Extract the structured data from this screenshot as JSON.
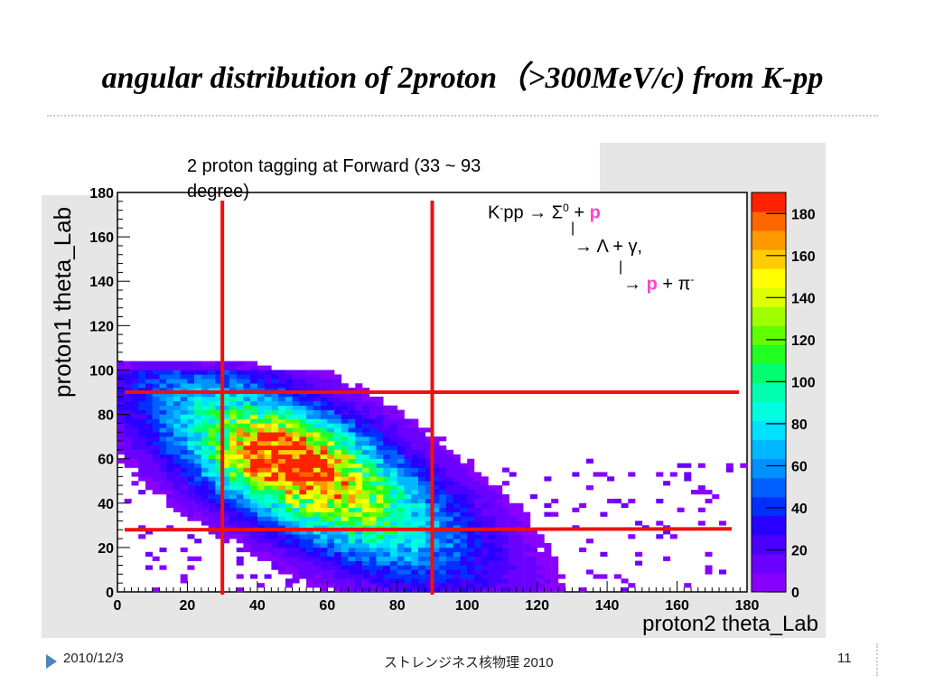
{
  "slide": {
    "title": "angular distribution of 2proton（>300MeV/c) from K-pp",
    "footer_date": "2010/12/3",
    "footer_center": "ストレンジネス核物理 2010",
    "page_number": "11"
  },
  "annotations": {
    "tagging_line1": "2 proton tagging at Forward (33 ~ 93",
    "tagging_line2": "degree)",
    "reaction_line1_k": "K",
    "reaction_line1_minus": "-",
    "reaction_line1_rest": "pp → Σ",
    "reaction_line1_zero": "0",
    "reaction_line1_plus": " + ",
    "reaction_line1_p": "p",
    "reaction_line2_bar": "|",
    "reaction_line2": "→ Λ + γ,",
    "reaction_line3_bar": "|",
    "reaction_line3_arrow": "→ ",
    "reaction_line3_p": "p",
    "reaction_line3_rest": " + π",
    "reaction_line3_minus": "-"
  },
  "chart_data": {
    "type": "heatmap",
    "xlabel": "proton2 theta_Lab",
    "ylabel": "proton1 theta_Lab",
    "xlim": [
      0,
      180
    ],
    "ylim": [
      0,
      180
    ],
    "x_ticks": [
      0,
      20,
      40,
      60,
      80,
      100,
      120,
      140,
      160,
      180
    ],
    "y_ticks": [
      0,
      20,
      40,
      60,
      80,
      100,
      120,
      140,
      160,
      180
    ],
    "z_ticks": [
      0,
      20,
      40,
      60,
      80,
      100,
      120,
      140,
      160,
      180
    ],
    "zlim": [
      0,
      190
    ],
    "colors": {
      "cut_lines": "#ee1111",
      "palette_low": "#7a00ff",
      "palette_high": "#ff0000"
    },
    "palette": [
      "#8800ff",
      "#6a00ff",
      "#4a00ff",
      "#2800ff",
      "#0030ff",
      "#0060ff",
      "#0090ff",
      "#00b8ff",
      "#00e0ff",
      "#00ffe0",
      "#00ffb0",
      "#00ff70",
      "#20ff20",
      "#60ff00",
      "#a0ff00",
      "#e0ff00",
      "#ffff00",
      "#ffcc00",
      "#ff9900",
      "#ff6600",
      "#ff2200"
    ],
    "density_model": {
      "ridge": "x + y ≈ 105, |x - y| < 75, x in [0,180], y in [0,103]",
      "peak": {
        "x": 47,
        "y": 60,
        "value": 185
      }
    },
    "cut_lines": [
      {
        "orientation": "vertical",
        "x": 30
      },
      {
        "orientation": "vertical",
        "x": 90
      },
      {
        "orientation": "horizontal",
        "y": 90
      },
      {
        "orientation": "horizontal",
        "y": 28
      }
    ]
  }
}
